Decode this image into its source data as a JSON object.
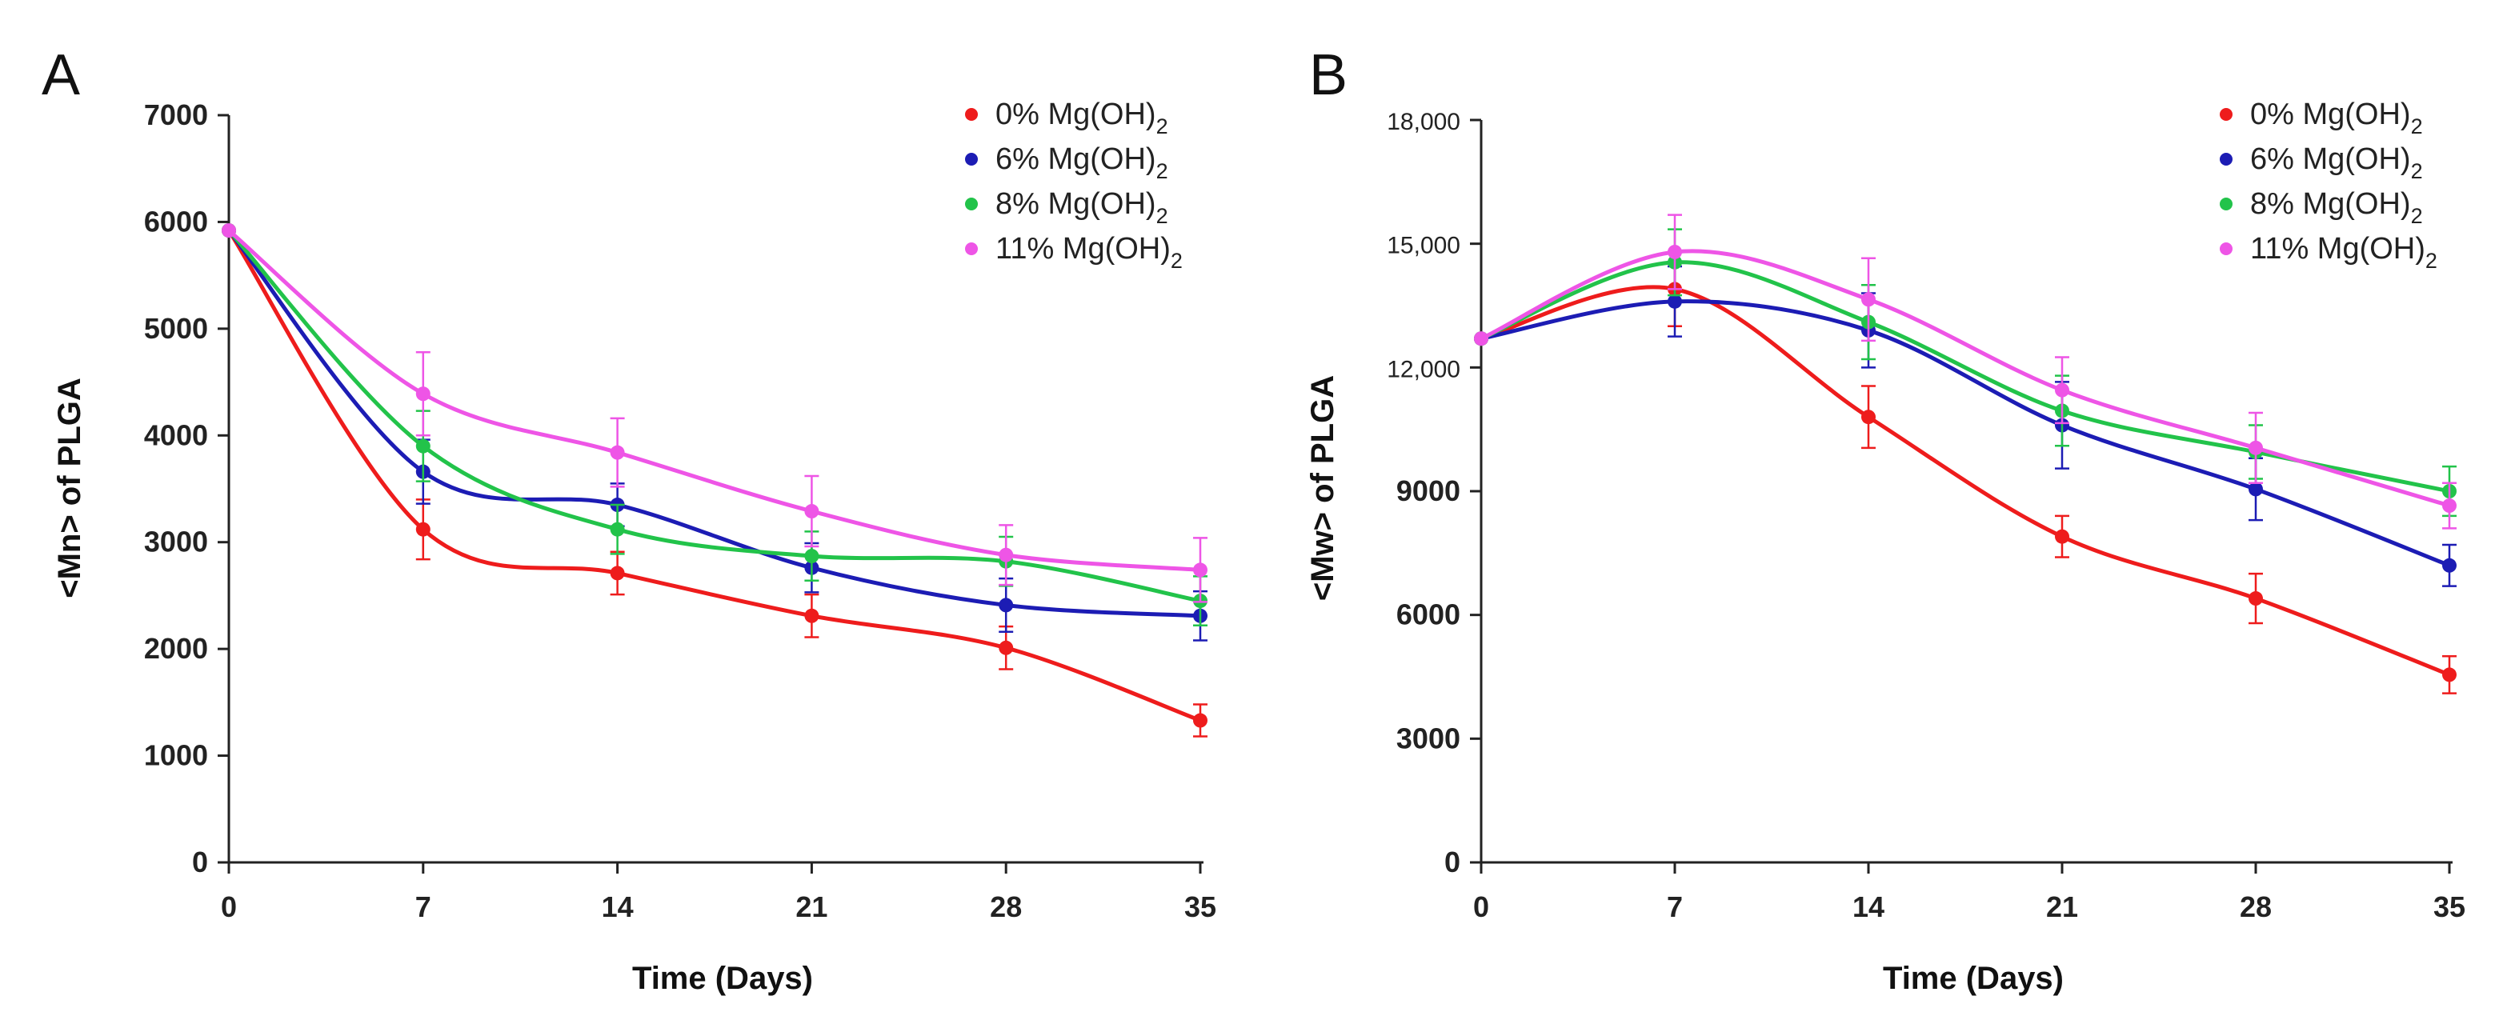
{
  "chart_data": [
    {
      "panel": "A",
      "type": "line",
      "ylabel": "<Mn> of PLGA",
      "xlabel": "Time (Days)",
      "x": [
        0,
        7,
        14,
        21,
        28,
        35
      ],
      "xticks": [
        "0",
        "7",
        "14",
        "21",
        "28",
        "35"
      ],
      "ylim": [
        0,
        7000
      ],
      "yticks": [
        {
          "value": 0,
          "label": "0"
        },
        {
          "value": 1000,
          "label": "1000"
        },
        {
          "value": 2000,
          "label": "2000"
        },
        {
          "value": 3000,
          "label": "3000"
        },
        {
          "value": 4000,
          "label": "4000"
        },
        {
          "value": 5000,
          "label": "5000"
        },
        {
          "value": 6000,
          "label": "6000"
        },
        {
          "value": 7000,
          "label": "7000"
        }
      ],
      "series": [
        {
          "name": "0% Mg(OH)",
          "sub": "2",
          "color": "#ee1c1c",
          "values": [
            5920,
            3120,
            2710,
            2310,
            2010,
            1330
          ],
          "errors": [
            0,
            280,
            200,
            200,
            200,
            150
          ]
        },
        {
          "name": "6% Mg(OH)",
          "sub": "2",
          "color": "#1c1cb4",
          "values": [
            5920,
            3660,
            3350,
            2760,
            2410,
            2310
          ],
          "errors": [
            0,
            300,
            200,
            230,
            250,
            230
          ]
        },
        {
          "name": "8% Mg(OH)",
          "sub": "2",
          "color": "#22c34a",
          "values": [
            5920,
            3900,
            3120,
            2870,
            2820,
            2450
          ],
          "errors": [
            0,
            330,
            230,
            230,
            230,
            230
          ]
        },
        {
          "name": "11% Mg(OH)",
          "sub": "2",
          "color": "#ee55e6",
          "values": [
            5920,
            4390,
            3840,
            3290,
            2880,
            2740
          ],
          "errors": [
            0,
            390,
            320,
            330,
            280,
            300
          ]
        }
      ]
    },
    {
      "panel": "B",
      "type": "line",
      "ylabel": "<Mw> of PLGA",
      "xlabel": "Time (Days)",
      "x": [
        0,
        7,
        14,
        21,
        28,
        35
      ],
      "xticks": [
        "0",
        "7",
        "14",
        "21",
        "28",
        "35"
      ],
      "ylim": [
        0,
        18000
      ],
      "yticks": [
        {
          "value": 0,
          "label": "0",
          "bold": true
        },
        {
          "value": 3000,
          "label": "3000",
          "bold": true
        },
        {
          "value": 6000,
          "label": "6000",
          "bold": true
        },
        {
          "value": 9000,
          "label": "9000",
          "bold": true
        },
        {
          "value": 12000,
          "label": "12,000",
          "bold": false
        },
        {
          "value": 15000,
          "label": "15,000",
          "bold": false
        },
        {
          "value": 18000,
          "label": "18,000",
          "bold": false
        }
      ],
      "series": [
        {
          "name": "0% Mg(OH)",
          "sub": "2",
          "color": "#ee1c1c",
          "values": [
            12700,
            13900,
            10800,
            7900,
            6400,
            4550
          ],
          "errors": [
            0,
            900,
            750,
            500,
            600,
            450
          ]
        },
        {
          "name": "6% Mg(OH)",
          "sub": "2",
          "color": "#1c1cb4",
          "values": [
            12700,
            13600,
            12900,
            10600,
            9050,
            7200
          ],
          "errors": [
            0,
            850,
            900,
            1050,
            750,
            500
          ]
        },
        {
          "name": "8% Mg(OH)",
          "sub": "2",
          "color": "#22c34a",
          "values": [
            12700,
            14550,
            13100,
            10950,
            9950,
            9000
          ],
          "errors": [
            0,
            800,
            900,
            850,
            650,
            600
          ]
        },
        {
          "name": "11% Mg(OH)",
          "sub": "2",
          "color": "#ee55e6",
          "values": [
            12700,
            14800,
            13650,
            11450,
            10050,
            8650
          ],
          "errors": [
            0,
            900,
            1000,
            800,
            850,
            550
          ]
        }
      ]
    }
  ]
}
